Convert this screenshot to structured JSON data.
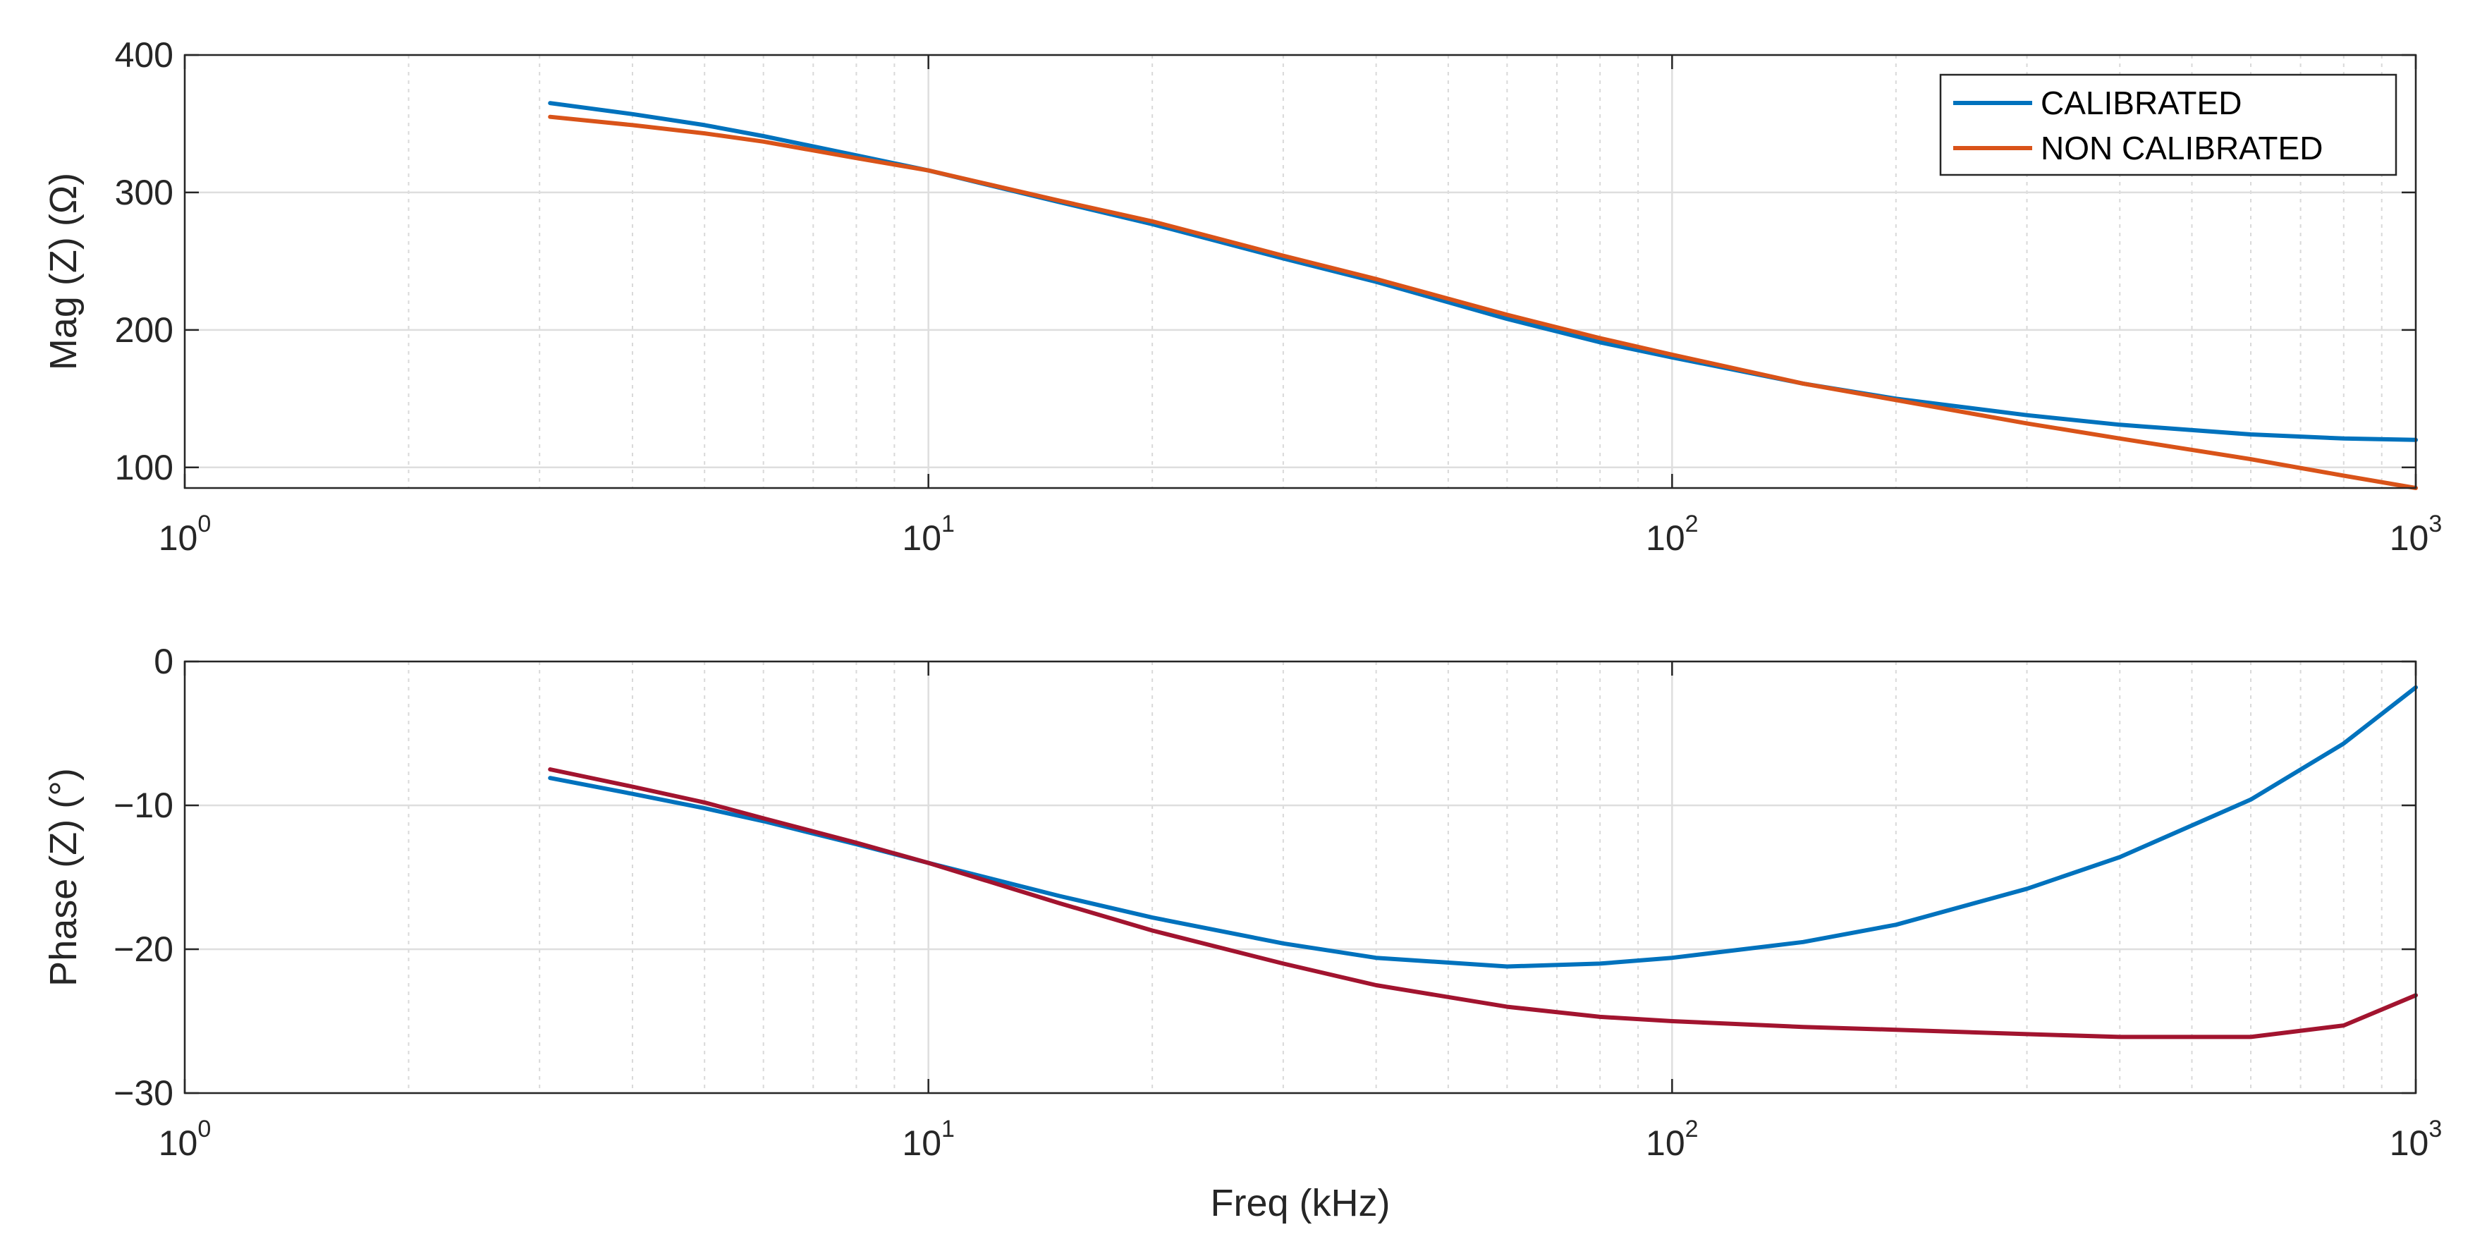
{
  "chart_data": [
    {
      "type": "line",
      "xscale": "log",
      "xlim": [
        1,
        1000
      ],
      "ylim": [
        85,
        400
      ],
      "grid": true,
      "xlabel": "",
      "ylabel": "Mag (Z) (Ω)",
      "x_ticks": [
        {
          "base": "10",
          "exp": "0"
        },
        {
          "base": "10",
          "exp": "1"
        },
        {
          "base": "10",
          "exp": "2"
        },
        {
          "base": "10",
          "exp": "3"
        }
      ],
      "y_ticks": [
        "100",
        "200",
        "300",
        "400"
      ],
      "legend_placement": "top-right",
      "x": [
        3.1,
        4,
        5,
        6,
        8,
        10,
        15,
        20,
        30,
        40,
        60,
        80,
        100,
        150,
        200,
        300,
        400,
        600,
        800,
        1000
      ],
      "series": [
        {
          "name": "CALIBRATED",
          "color": "#0072BD",
          "values": [
            365,
            357,
            349,
            341,
            327,
            316,
            293,
            277,
            252,
            235,
            208,
            191,
            180,
            161,
            150,
            138,
            131,
            124,
            121,
            120
          ]
        },
        {
          "name": "NON CALIBRATED",
          "color": "#D95319",
          "values": [
            355,
            349,
            343,
            337,
            325,
            316,
            294,
            279,
            254,
            237,
            211,
            194,
            182,
            161,
            149,
            132,
            121,
            106,
            94,
            85
          ]
        }
      ]
    },
    {
      "type": "line",
      "xscale": "log",
      "xlim": [
        1,
        1000
      ],
      "ylim": [
        -30,
        0
      ],
      "grid": true,
      "xlabel": "Freq (kHz)",
      "ylabel": "Phase (Z) (°)",
      "x_ticks": [
        {
          "base": "10",
          "exp": "0"
        },
        {
          "base": "10",
          "exp": "1"
        },
        {
          "base": "10",
          "exp": "2"
        },
        {
          "base": "10",
          "exp": "3"
        }
      ],
      "y_ticks": [
        "−30",
        "−20",
        "−10",
        "0"
      ],
      "x": [
        3.1,
        4,
        5,
        6,
        8,
        10,
        15,
        20,
        30,
        40,
        60,
        80,
        100,
        150,
        200,
        300,
        400,
        600,
        800,
        1000
      ],
      "series": [
        {
          "color": "#0072BD",
          "values": [
            -8.1,
            -9.2,
            -10.2,
            -11.1,
            -12.7,
            -14.0,
            -16.3,
            -17.8,
            -19.6,
            -20.6,
            -21.2,
            -21.0,
            -20.6,
            -19.5,
            -18.3,
            -15.8,
            -13.6,
            -9.6,
            -5.7,
            -1.8
          ]
        },
        {
          "color": "#A2142F",
          "values": [
            -7.5,
            -8.7,
            -9.8,
            -10.9,
            -12.6,
            -14.0,
            -16.8,
            -18.7,
            -21.0,
            -22.5,
            -24.0,
            -24.7,
            -25.0,
            -25.4,
            -25.6,
            -25.9,
            -26.1,
            -26.1,
            -25.3,
            -23.2
          ]
        }
      ]
    }
  ]
}
